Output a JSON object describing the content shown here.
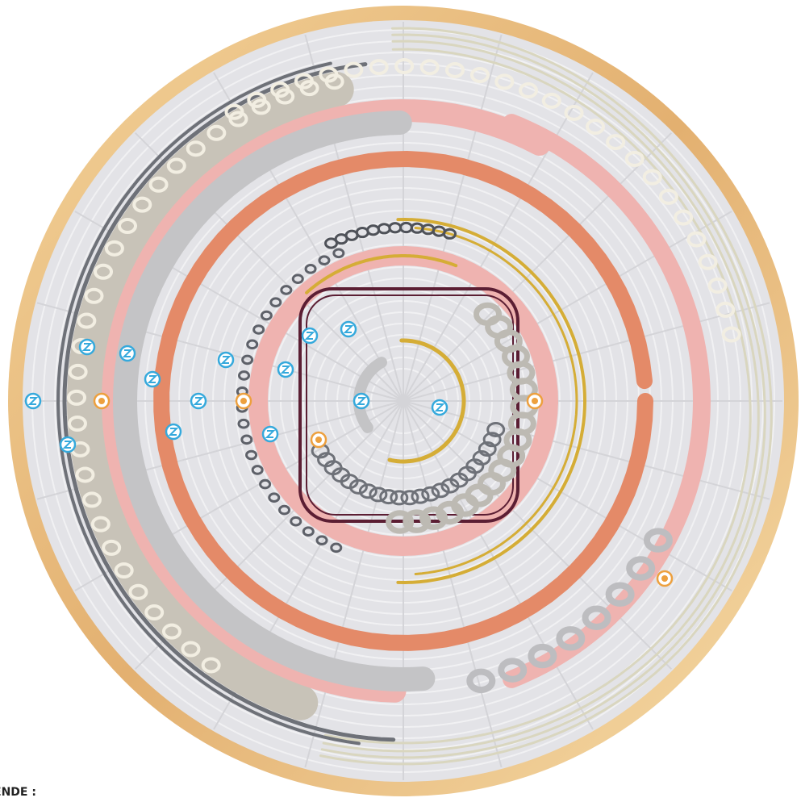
{
  "legend": {
    "title": "ENDE :"
  }
}
